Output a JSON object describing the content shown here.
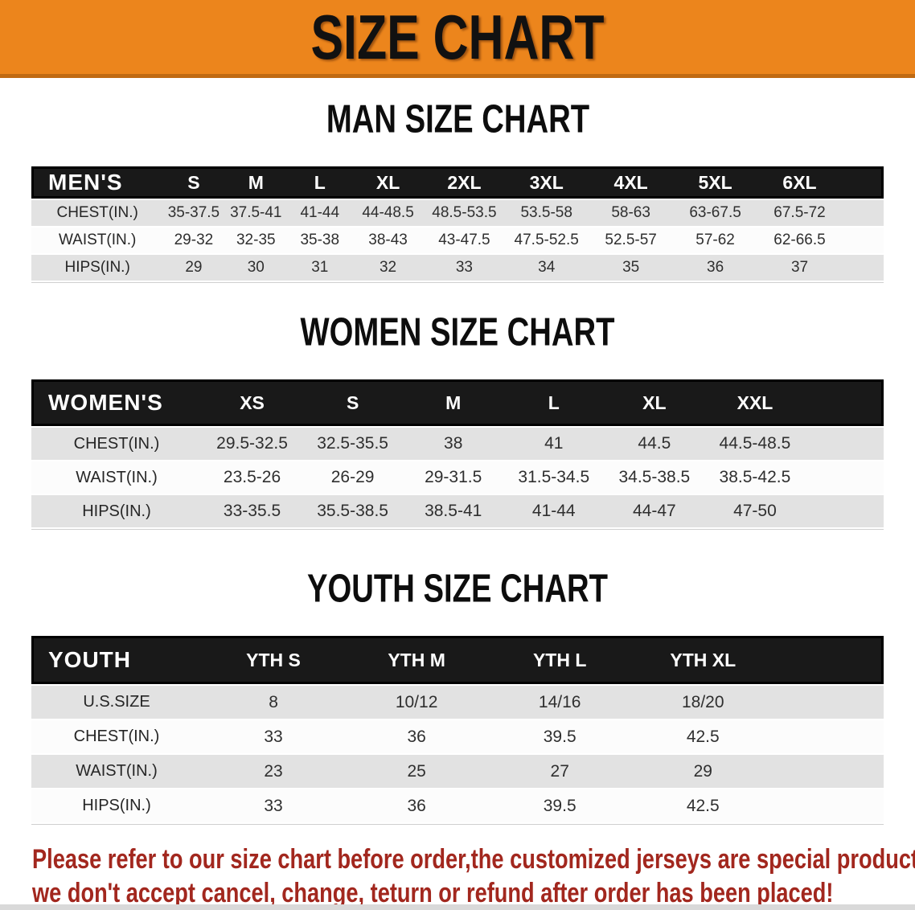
{
  "banner": {
    "title": "SIZE CHART"
  },
  "colors": {
    "banner_bg": "#EC851C",
    "banner_edge": "#C06A12",
    "title_color": "#111111",
    "header_bg": "#191919",
    "header_text": "#FFFFFF",
    "row_alt_bg": "#E2E2E2",
    "row_bg": "#FCFCFC",
    "row_text": "#2F2F2F",
    "footer_text": "#A2271E",
    "bottom_strip": "#D9D9D9"
  },
  "sections": {
    "men": {
      "title": "MAN SIZE CHART",
      "header": [
        "MEN'S",
        "S",
        "M",
        "L",
        "XL",
        "2XL",
        "3XL",
        "4XL",
        "5XL",
        "6XL"
      ],
      "rows": [
        {
          "label": "CHEST(IN.)",
          "values": [
            "35-37.5",
            "37.5-41",
            "41-44",
            "44-48.5",
            "48.5-53.5",
            "53.5-58",
            "58-63",
            "63-67.5",
            "67.5-72"
          ]
        },
        {
          "label": "WAIST(IN.)",
          "values": [
            "29-32",
            "32-35",
            "35-38",
            "38-43",
            "43-47.5",
            "47.5-52.5",
            "52.5-57",
            "57-62",
            "62-66.5"
          ]
        },
        {
          "label": "HIPS(IN.)",
          "values": [
            "29",
            "30",
            "31",
            "32",
            "33",
            "34",
            "35",
            "36",
            "37"
          ]
        }
      ]
    },
    "women": {
      "title": "WOMEN SIZE CHART",
      "header": [
        "WOMEN'S",
        "XS",
        "S",
        "M",
        "L",
        "XL",
        "XXL"
      ],
      "rows": [
        {
          "label": "CHEST(IN.)",
          "values": [
            "29.5-32.5",
            "32.5-35.5",
            "38",
            "41",
            "44.5",
            "44.5-48.5"
          ]
        },
        {
          "label": "WAIST(IN.)",
          "values": [
            "23.5-26",
            "26-29",
            "29-31.5",
            "31.5-34.5",
            "34.5-38.5",
            "38.5-42.5"
          ]
        },
        {
          "label": "HIPS(IN.)",
          "values": [
            "33-35.5",
            "35.5-38.5",
            "38.5-41",
            "41-44",
            "44-47",
            "47-50"
          ]
        }
      ]
    },
    "youth": {
      "title": "YOUTH SIZE CHART",
      "header": [
        "YOUTH",
        "YTH S",
        "YTH M",
        "YTH L",
        "YTH XL"
      ],
      "rows": [
        {
          "label": "U.S.SIZE",
          "values": [
            "8",
            "10/12",
            "14/16",
            "18/20"
          ]
        },
        {
          "label": "CHEST(IN.)",
          "values": [
            "33",
            "36",
            "39.5",
            "42.5"
          ]
        },
        {
          "label": "WAIST(IN.)",
          "values": [
            "23",
            "25",
            "27",
            "29"
          ]
        },
        {
          "label": "HIPS(IN.)",
          "values": [
            "33",
            "36",
            "39.5",
            "42.5"
          ]
        }
      ]
    }
  },
  "footer": {
    "line1": "Please refer to our size chart before order,the customized jerseys are special products,",
    "line2": "we don't accept cancel, change, teturn or refund after order has been placed!"
  }
}
